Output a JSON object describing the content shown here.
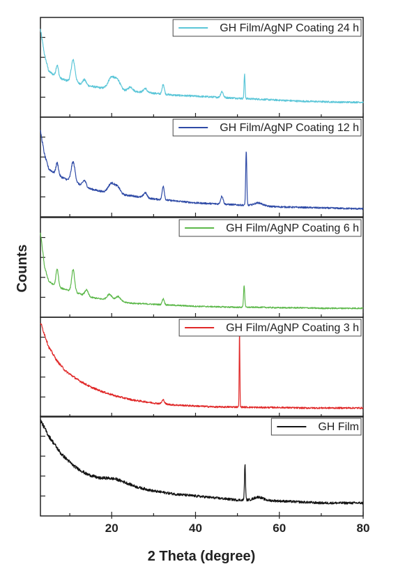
{
  "chart_data": {
    "type": "line",
    "xlabel": "2 Theta (degree)",
    "ylabel": "Counts",
    "xlim": [
      3,
      80
    ],
    "x_ticks": [
      20,
      40,
      60,
      80
    ],
    "y_ticks_labeled": false,
    "grid": false,
    "layout": "stacked panels, one series per panel",
    "legend_position": "top-right of each panel",
    "panels": [
      {
        "name": "GH Film/AgNP Coating 24 h",
        "color": "#5bc6d8",
        "ylim": [
          0,
          100
        ],
        "baseline": [
          [
            3,
            88
          ],
          [
            4,
            62
          ],
          [
            5,
            46
          ],
          [
            7,
            40
          ],
          [
            9,
            37
          ],
          [
            12,
            34
          ],
          [
            15,
            31
          ],
          [
            18,
            29
          ],
          [
            21,
            28
          ],
          [
            25,
            26
          ],
          [
            30,
            24
          ],
          [
            35,
            22
          ],
          [
            40,
            21
          ],
          [
            45,
            20
          ],
          [
            50,
            19
          ],
          [
            55,
            18
          ],
          [
            60,
            17
          ],
          [
            65,
            16
          ],
          [
            70,
            15.5
          ],
          [
            75,
            15
          ],
          [
            80,
            15
          ]
        ],
        "peaks": [
          [
            7,
            12,
            0.3
          ],
          [
            10.8,
            22,
            0.45
          ],
          [
            13.5,
            5,
            0.4
          ],
          [
            20,
            12,
            0.8
          ],
          [
            21.5,
            8,
            0.6
          ],
          [
            24.5,
            4,
            0.5
          ],
          [
            28,
            4,
            0.4
          ],
          [
            32.3,
            10,
            0.25
          ],
          [
            46.3,
            6,
            0.3
          ],
          [
            51.7,
            24,
            0.12
          ]
        ],
        "noise": 2.5
      },
      {
        "name": "GH Film/AgNP Coating 12 h",
        "color": "#2e4aa6",
        "ylim": [
          0,
          100
        ],
        "baseline": [
          [
            3,
            86
          ],
          [
            4,
            62
          ],
          [
            5,
            48
          ],
          [
            7,
            42
          ],
          [
            9,
            38
          ],
          [
            12,
            33
          ],
          [
            15,
            28
          ],
          [
            18,
            25
          ],
          [
            21,
            23
          ],
          [
            25,
            21
          ],
          [
            30,
            18
          ],
          [
            35,
            16
          ],
          [
            40,
            14
          ],
          [
            45,
            13
          ],
          [
            50,
            12
          ],
          [
            55,
            11
          ],
          [
            60,
            10
          ],
          [
            65,
            9.5
          ],
          [
            70,
            9
          ],
          [
            75,
            8.5
          ],
          [
            80,
            8
          ]
        ],
        "peaks": [
          [
            7,
            12,
            0.3
          ],
          [
            10.8,
            20,
            0.45
          ],
          [
            13.5,
            6,
            0.4
          ],
          [
            20,
            10,
            0.8
          ],
          [
            21.5,
            6,
            0.6
          ],
          [
            28,
            5,
            0.4
          ],
          [
            32.3,
            14,
            0.25
          ],
          [
            46.3,
            8,
            0.3
          ],
          [
            52.1,
            55,
            0.13
          ],
          [
            55,
            3,
            1
          ]
        ],
        "noise": 2.5
      },
      {
        "name": "GH Film/AgNP Coating 6 h",
        "color": "#5cb84a",
        "ylim": [
          0,
          100
        ],
        "baseline": [
          [
            3,
            85
          ],
          [
            4,
            50
          ],
          [
            5,
            36
          ],
          [
            7,
            30
          ],
          [
            9,
            28
          ],
          [
            12,
            24
          ],
          [
            15,
            20
          ],
          [
            18,
            18
          ],
          [
            21,
            16
          ],
          [
            25,
            14
          ],
          [
            30,
            13
          ],
          [
            35,
            12
          ],
          [
            40,
            11
          ],
          [
            45,
            10.5
          ],
          [
            50,
            10
          ],
          [
            55,
            10
          ],
          [
            60,
            9.5
          ],
          [
            65,
            9.5
          ],
          [
            70,
            9
          ],
          [
            75,
            9
          ],
          [
            80,
            9
          ]
        ],
        "peaks": [
          [
            7,
            18,
            0.3
          ],
          [
            10.8,
            22,
            0.35
          ],
          [
            14,
            6,
            0.4
          ],
          [
            19.5,
            6,
            0.6
          ],
          [
            21.5,
            5,
            0.6
          ],
          [
            32.3,
            6,
            0.25
          ],
          [
            51.6,
            22,
            0.14
          ]
        ],
        "noise": 2
      },
      {
        "name": "GH Film/AgNP Coating 3 h",
        "color": "#e02828",
        "ylim": [
          0,
          100
        ],
        "baseline": [
          [
            3,
            95
          ],
          [
            5,
            70
          ],
          [
            7,
            56
          ],
          [
            9,
            46
          ],
          [
            12,
            37
          ],
          [
            15,
            30
          ],
          [
            18,
            25
          ],
          [
            21,
            21
          ],
          [
            25,
            17
          ],
          [
            30,
            14
          ],
          [
            35,
            12
          ],
          [
            40,
            11
          ],
          [
            45,
            10
          ],
          [
            50,
            10
          ],
          [
            55,
            9.5
          ],
          [
            60,
            9.5
          ],
          [
            65,
            9
          ],
          [
            70,
            9
          ],
          [
            75,
            9
          ],
          [
            80,
            9
          ]
        ],
        "peaks": [
          [
            32.3,
            4,
            0.3
          ],
          [
            50.5,
            78,
            0.08
          ]
        ],
        "noise": 2.5
      },
      {
        "name": "GH Film",
        "color": "#141414",
        "ylim": [
          0,
          100
        ],
        "baseline": [
          [
            3,
            96
          ],
          [
            5,
            80
          ],
          [
            8,
            62
          ],
          [
            11,
            50
          ],
          [
            14,
            42
          ],
          [
            17,
            38
          ],
          [
            19,
            38
          ],
          [
            21,
            37
          ],
          [
            23,
            34
          ],
          [
            26,
            29
          ],
          [
            30,
            25
          ],
          [
            35,
            22
          ],
          [
            40,
            20
          ],
          [
            45,
            18
          ],
          [
            50,
            16
          ],
          [
            55,
            16
          ],
          [
            60,
            15
          ],
          [
            65,
            14
          ],
          [
            70,
            13
          ],
          [
            75,
            13
          ],
          [
            80,
            13
          ]
        ],
        "peaks": [
          [
            51.8,
            36,
            0.12
          ],
          [
            55,
            3,
            1
          ]
        ],
        "noise": 3.5
      }
    ]
  }
}
